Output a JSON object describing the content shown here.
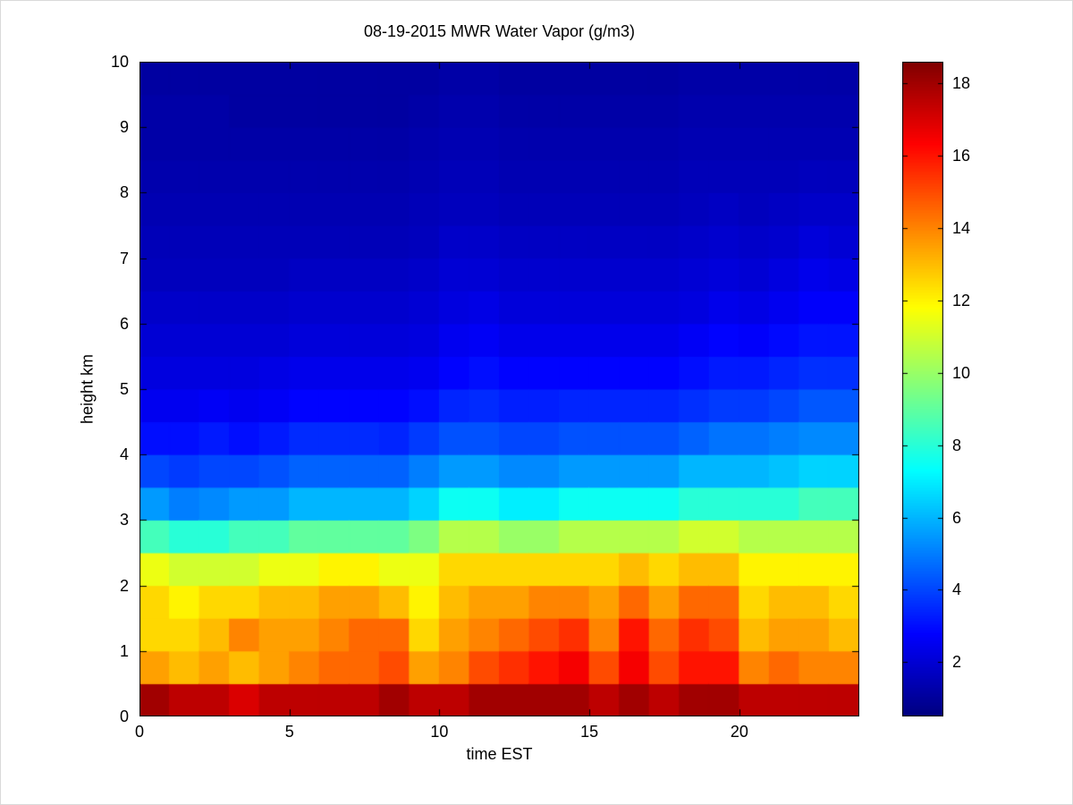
{
  "chart_data": {
    "type": "heatmap",
    "title": "08-19-2015 MWR Water Vapor (g/m3)",
    "xlabel": "time EST",
    "ylabel": "height km",
    "colormap": "jet",
    "grid": false,
    "xlim": [
      0,
      24
    ],
    "ylim": [
      0,
      10
    ],
    "xticks": [
      0,
      5,
      10,
      15,
      20
    ],
    "yticks": [
      0,
      1,
      2,
      3,
      4,
      5,
      6,
      7,
      8,
      9,
      10
    ],
    "time_step_hours": 1,
    "height_step_km": 0.5,
    "x_hours": [
      0,
      1,
      2,
      3,
      4,
      5,
      6,
      7,
      8,
      9,
      10,
      11,
      12,
      13,
      14,
      15,
      16,
      17,
      18,
      19,
      20,
      21,
      22,
      23
    ],
    "height_levels_km": [
      0.25,
      0.75,
      1.25,
      1.75,
      2.25,
      2.75,
      3.25,
      3.75,
      4.25,
      4.75,
      5.25,
      5.75,
      6.25,
      6.75,
      7.25,
      7.75,
      8.25,
      8.75,
      9.25,
      9.75
    ],
    "colorbar": {
      "vmin": 0.5,
      "vmax": 18.6,
      "ticks": [
        2,
        4,
        6,
        8,
        10,
        12,
        14,
        16,
        18
      ]
    },
    "values_by_hour": [
      [
        18.0,
        13.5,
        12.5,
        12.5,
        11.5,
        8.5,
        5.5,
        4.0,
        3.0,
        2.5,
        2.2,
        2.0,
        1.8,
        1.6,
        1.5,
        1.4,
        1.3,
        1.2,
        1.2,
        1.1
      ],
      [
        17.5,
        13.0,
        12.5,
        12.0,
        11.0,
        8.0,
        5.0,
        3.8,
        3.0,
        2.5,
        2.2,
        2.0,
        1.8,
        1.6,
        1.5,
        1.4,
        1.3,
        1.2,
        1.2,
        1.1
      ],
      [
        17.5,
        13.5,
        13.0,
        12.5,
        11.0,
        8.0,
        5.2,
        4.0,
        3.2,
        2.6,
        2.2,
        2.0,
        1.8,
        1.6,
        1.5,
        1.4,
        1.3,
        1.2,
        1.2,
        1.1
      ],
      [
        17.0,
        13.0,
        14.0,
        12.5,
        11.0,
        8.5,
        5.5,
        4.0,
        3.0,
        2.5,
        2.2,
        2.0,
        1.8,
        1.6,
        1.5,
        1.4,
        1.3,
        1.2,
        1.1,
        1.1
      ],
      [
        17.5,
        13.5,
        13.5,
        13.0,
        11.5,
        8.5,
        5.5,
        4.2,
        3.2,
        2.6,
        2.3,
        2.0,
        1.8,
        1.6,
        1.5,
        1.4,
        1.3,
        1.2,
        1.1,
        1.1
      ],
      [
        17.5,
        14.0,
        13.5,
        13.0,
        11.5,
        9.0,
        6.0,
        4.5,
        3.5,
        2.8,
        2.4,
        2.1,
        1.9,
        1.7,
        1.5,
        1.4,
        1.3,
        1.2,
        1.1,
        1.1
      ],
      [
        17.5,
        14.5,
        14.0,
        13.5,
        12.0,
        9.0,
        6.0,
        4.5,
        3.5,
        2.8,
        2.4,
        2.1,
        1.9,
        1.7,
        1.5,
        1.4,
        1.3,
        1.2,
        1.1,
        1.1
      ],
      [
        17.5,
        14.5,
        14.5,
        13.5,
        12.0,
        9.0,
        6.0,
        4.5,
        3.5,
        2.8,
        2.4,
        2.1,
        1.9,
        1.7,
        1.5,
        1.4,
        1.3,
        1.2,
        1.1,
        1.1
      ],
      [
        18.0,
        15.0,
        14.5,
        13.0,
        11.5,
        9.0,
        6.0,
        4.5,
        3.4,
        2.8,
        2.4,
        2.1,
        1.9,
        1.7,
        1.5,
        1.4,
        1.3,
        1.2,
        1.1,
        1.1
      ],
      [
        17.5,
        13.5,
        12.5,
        12.0,
        11.5,
        9.5,
        6.5,
        5.0,
        3.8,
        3.0,
        2.5,
        2.2,
        2.0,
        1.8,
        1.6,
        1.5,
        1.4,
        1.3,
        1.2,
        1.1
      ],
      [
        17.5,
        14.0,
        13.5,
        13.0,
        12.5,
        10.5,
        7.5,
        5.5,
        4.2,
        3.4,
        2.8,
        2.5,
        2.2,
        2.0,
        1.8,
        1.6,
        1.5,
        1.4,
        1.3,
        1.2
      ],
      [
        18.0,
        15.0,
        14.0,
        13.5,
        12.5,
        10.5,
        7.5,
        5.5,
        4.2,
        3.5,
        3.0,
        2.6,
        2.3,
        2.0,
        1.8,
        1.6,
        1.5,
        1.4,
        1.3,
        1.2
      ],
      [
        18.0,
        15.5,
        14.5,
        13.5,
        12.5,
        10.0,
        7.0,
        5.2,
        4.0,
        3.3,
        2.8,
        2.4,
        2.1,
        1.9,
        1.7,
        1.5,
        1.4,
        1.3,
        1.2,
        1.1
      ],
      [
        18.0,
        16.0,
        15.0,
        14.0,
        12.5,
        10.0,
        7.0,
        5.2,
        4.0,
        3.3,
        2.8,
        2.4,
        2.1,
        1.9,
        1.7,
        1.5,
        1.4,
        1.3,
        1.2,
        1.1
      ],
      [
        18.0,
        16.5,
        15.5,
        14.0,
        12.5,
        10.5,
        7.5,
        5.5,
        4.2,
        3.4,
        2.8,
        2.4,
        2.1,
        1.9,
        1.7,
        1.5,
        1.4,
        1.3,
        1.2,
        1.1
      ],
      [
        17.5,
        15.0,
        14.0,
        13.5,
        12.5,
        10.5,
        7.5,
        5.5,
        4.2,
        3.4,
        2.8,
        2.4,
        2.1,
        1.9,
        1.7,
        1.5,
        1.4,
        1.3,
        1.2,
        1.1
      ],
      [
        18.0,
        16.5,
        16.0,
        14.5,
        13.0,
        10.5,
        7.5,
        5.5,
        4.2,
        3.4,
        2.8,
        2.4,
        2.1,
        1.9,
        1.7,
        1.5,
        1.4,
        1.3,
        1.2,
        1.1
      ],
      [
        17.5,
        15.0,
        14.5,
        13.5,
        12.5,
        10.5,
        7.5,
        5.5,
        4.2,
        3.4,
        2.8,
        2.4,
        2.1,
        1.9,
        1.7,
        1.5,
        1.4,
        1.3,
        1.2,
        1.1
      ],
      [
        18.0,
        16.0,
        15.5,
        14.5,
        13.0,
        11.0,
        8.0,
        6.0,
        4.5,
        3.6,
        3.0,
        2.6,
        2.2,
        2.0,
        1.8,
        1.6,
        1.5,
        1.4,
        1.3,
        1.2
      ],
      [
        18.0,
        16.0,
        15.0,
        14.5,
        13.0,
        11.0,
        8.0,
        6.0,
        4.8,
        3.8,
        3.2,
        2.8,
        2.4,
        2.1,
        1.9,
        1.7,
        1.5,
        1.4,
        1.3,
        1.2
      ],
      [
        17.5,
        14.0,
        13.0,
        12.5,
        12.0,
        10.5,
        8.0,
        6.0,
        4.8,
        3.8,
        3.2,
        2.7,
        2.3,
        2.0,
        1.8,
        1.6,
        1.5,
        1.4,
        1.3,
        1.2
      ],
      [
        17.5,
        14.5,
        13.5,
        13.0,
        12.0,
        10.5,
        8.0,
        6.2,
        5.0,
        4.0,
        3.4,
        2.9,
        2.5,
        2.2,
        1.9,
        1.7,
        1.5,
        1.4,
        1.3,
        1.2
      ],
      [
        17.5,
        14.0,
        13.5,
        13.0,
        12.0,
        10.5,
        8.5,
        6.5,
        5.2,
        4.3,
        3.6,
        3.1,
        2.7,
        2.4,
        2.1,
        1.8,
        1.6,
        1.4,
        1.3,
        1.2
      ],
      [
        17.5,
        14.0,
        13.0,
        12.5,
        12.0,
        10.5,
        8.5,
        6.5,
        5.2,
        4.3,
        3.6,
        3.1,
        2.7,
        2.3,
        2.0,
        1.8,
        1.6,
        1.4,
        1.3,
        1.2
      ]
    ]
  }
}
